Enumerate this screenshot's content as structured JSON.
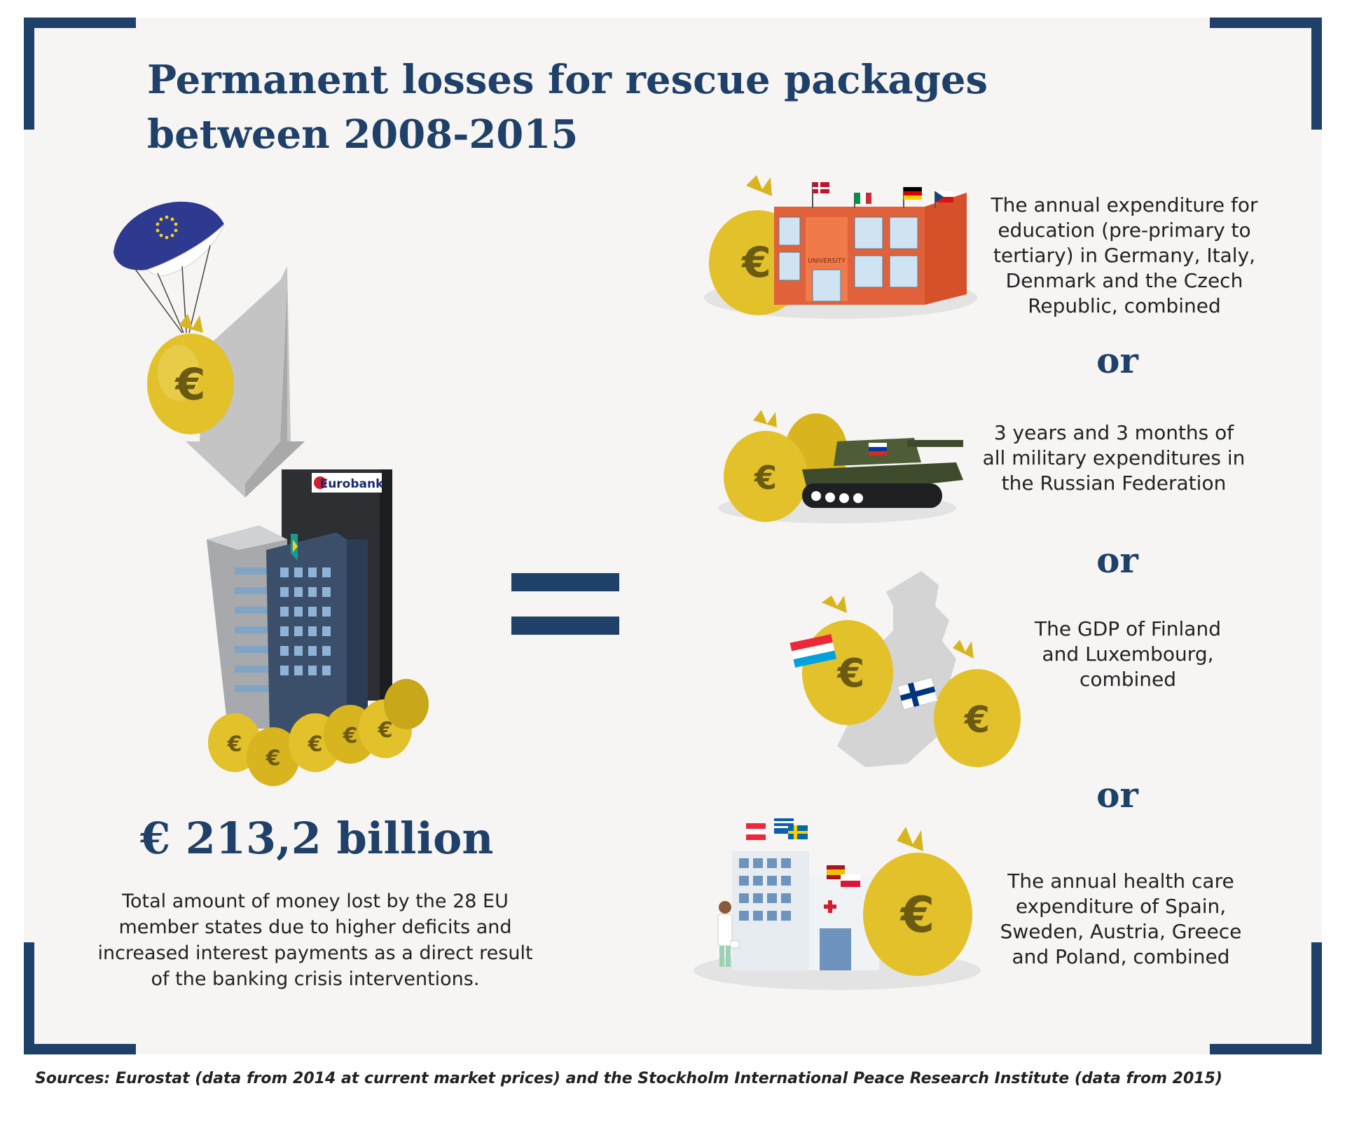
{
  "title": {
    "line1": "Permanent losses for rescue packages",
    "line2": "between 2008-2015"
  },
  "left": {
    "amount": "€ 213,2 billion",
    "description": "Total amount of money lost by the 28 EU member states due to higher deficits and increased interest payments as a direct result of the banking crisis interventions.",
    "bank_sign_1": "Eurobank"
  },
  "comparisons": [
    {
      "text": "The annual expenditure for education (pre-primary to tertiary) in Germany, Italy, Denmark and the Czech Republic, combined",
      "sign": "UNIVERSITY",
      "icon": "university-with-money-bag"
    },
    {
      "text": "3 years and 3 months of all military expenditures in the Russian Federation",
      "icon": "tank-with-money-bags"
    },
    {
      "text": "The GDP of Finland and Luxembourg, combined",
      "icon": "finland-map-with-money-bags"
    },
    {
      "text": "The annual health care expenditure  of Spain, Sweden, Austria, Greece and Poland, combined",
      "icon": "hospital-with-money-bag"
    }
  ],
  "or_label": "or",
  "euro_symbol": "€",
  "sources": "Sources: Eurostat (data from 2014 at current market prices) and the Stockholm International Peace Research Institute (data from 2015)",
  "colors": {
    "navy": "#1f4068",
    "gold": "#e2c12a",
    "background": "#f6f5f3"
  }
}
